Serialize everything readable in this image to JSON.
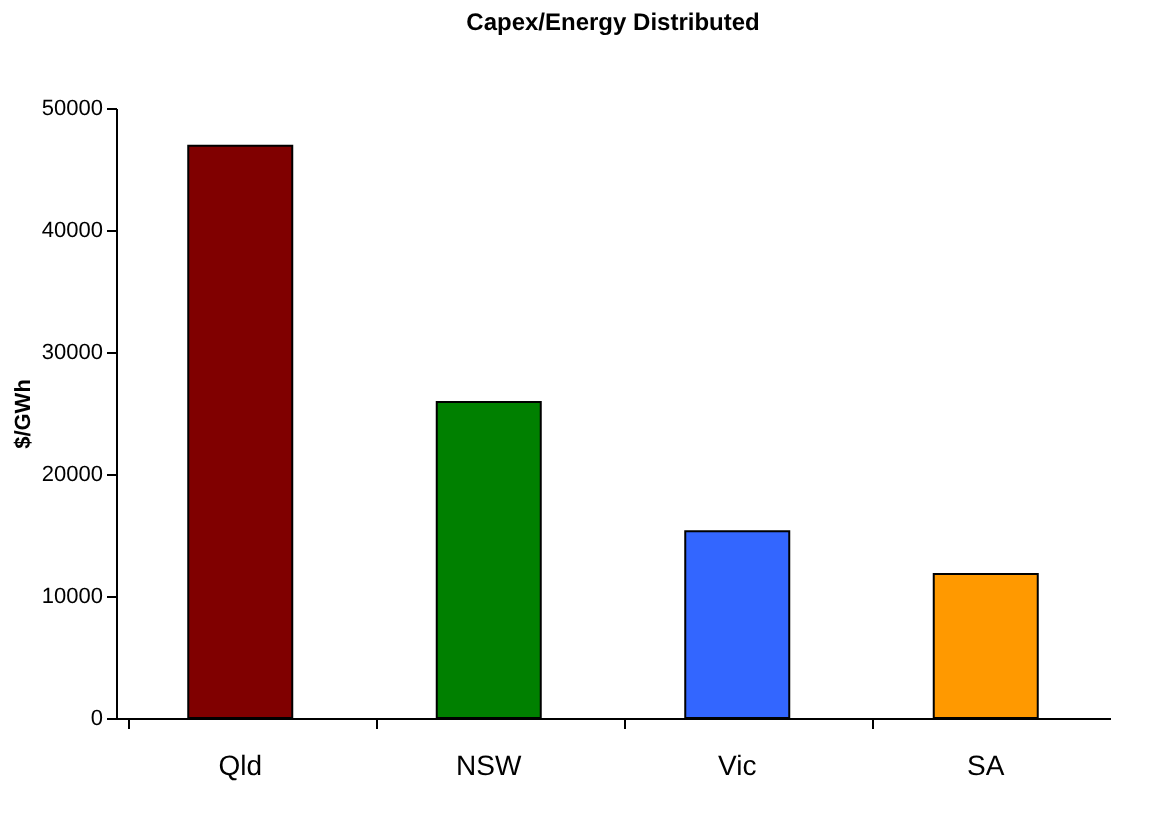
{
  "chart_data": {
    "type": "bar",
    "title": "Capex/Energy Distributed",
    "ylabel": "$/GWh",
    "categories": [
      "Qld",
      "NSW",
      "Vic",
      "SA"
    ],
    "values": [
      46900,
      25900,
      15300,
      11800
    ],
    "colors": [
      "#800000",
      "#008000",
      "#3366ff",
      "#ff9900"
    ],
    "ylim": [
      0,
      50000
    ],
    "yticks": [
      0,
      10000,
      20000,
      30000,
      40000,
      50000
    ],
    "grid": false
  }
}
